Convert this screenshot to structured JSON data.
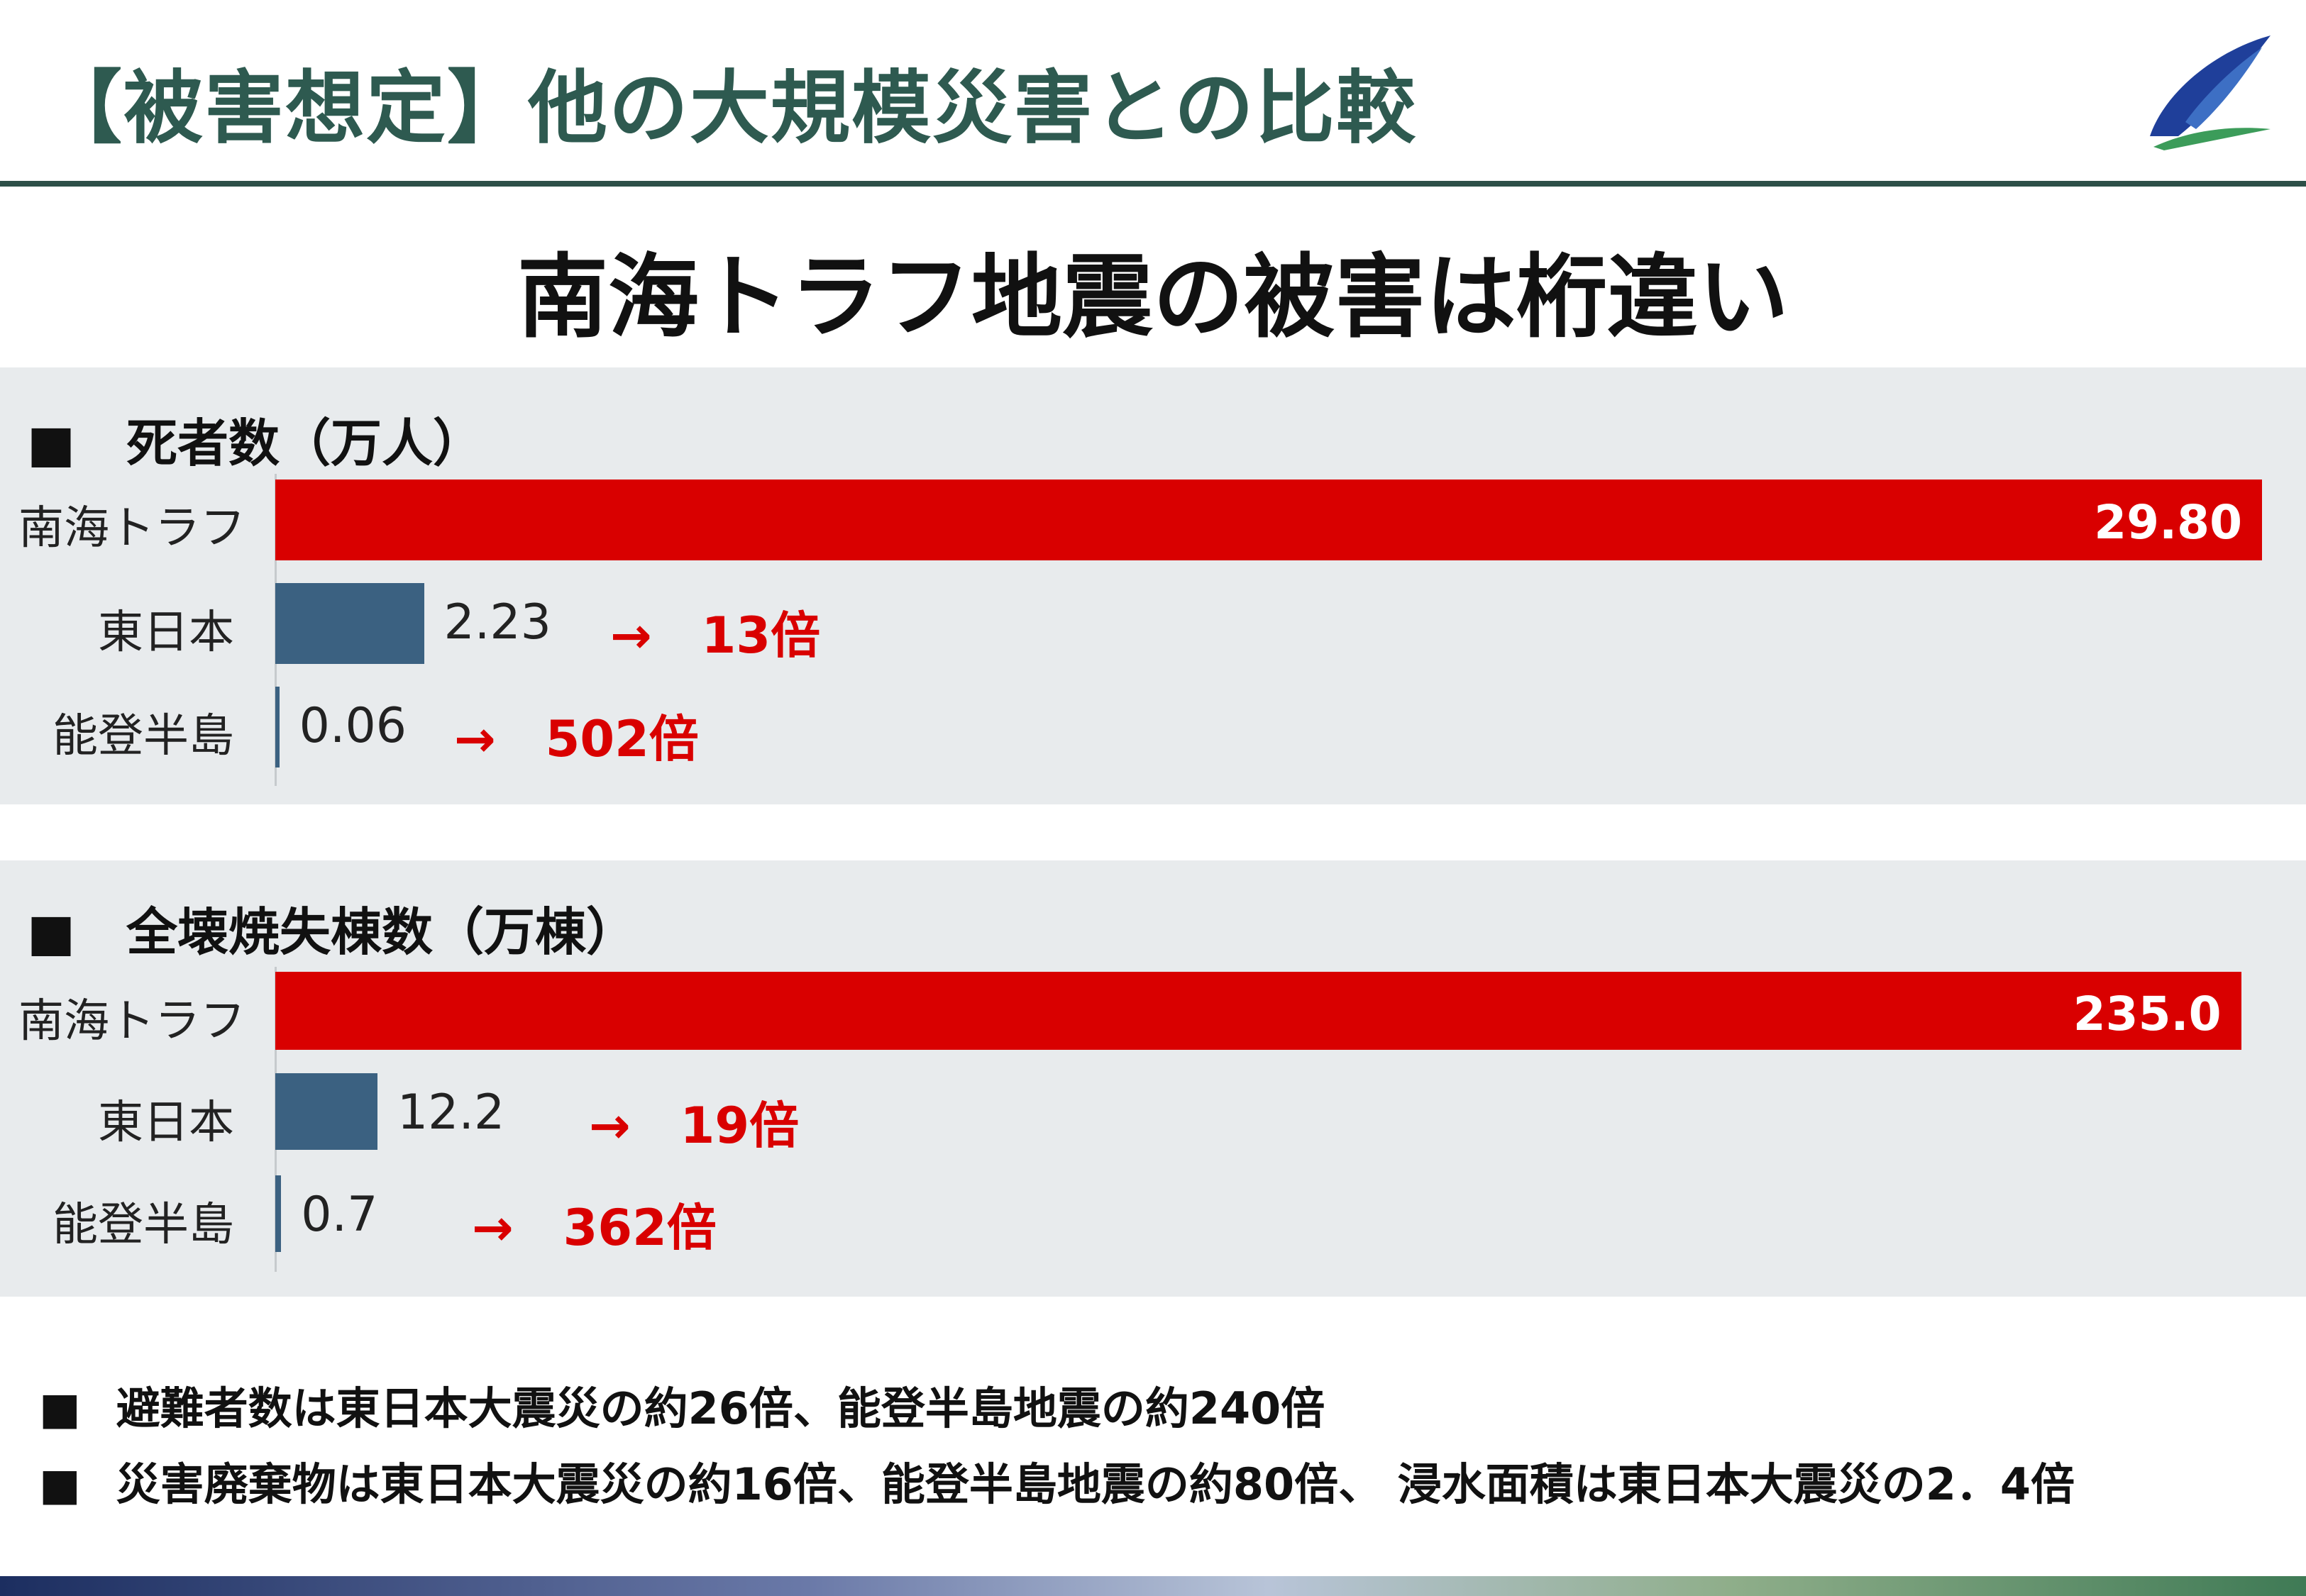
{
  "header": {
    "title": "【被害想定】他の大規模災害との比較"
  },
  "headline": "南海トラフ地震の被害は桁違い",
  "colors": {
    "accent_red": "#d90000",
    "bar_blue": "#3b6181",
    "header_green": "#2e5a50"
  },
  "chart_data": [
    {
      "type": "bar",
      "orientation": "horizontal",
      "title": "■　死者数（万人）",
      "categories": [
        "南海トラフ",
        "東日本",
        "能登半島"
      ],
      "values": [
        29.8,
        2.23,
        0.06
      ],
      "value_labels": [
        "29.80",
        "2.23",
        "0.06"
      ],
      "ratio_labels": [
        "",
        "→　13倍",
        "→　502倍"
      ],
      "xlim": [
        0,
        29.8
      ]
    },
    {
      "type": "bar",
      "orientation": "horizontal",
      "title": "■　全壊焼失棟数（万棟）",
      "categories": [
        "南海トラフ",
        "東日本",
        "能登半島"
      ],
      "values": [
        235.0,
        12.2,
        0.7
      ],
      "value_labels": [
        "235.0",
        "12.2",
        "0.7"
      ],
      "ratio_labels": [
        "",
        "→　19倍",
        "→　362倍"
      ],
      "xlim": [
        0,
        237.5
      ]
    }
  ],
  "notes": [
    "避難者数は東日本大震災の約26倍、能登半島地震の約240倍",
    "災害廃棄物は東日本大震災の約16倍、能登半島地震の約80倍、 浸水面積は東日本大震災の2．4倍"
  ],
  "note_marker": "■"
}
